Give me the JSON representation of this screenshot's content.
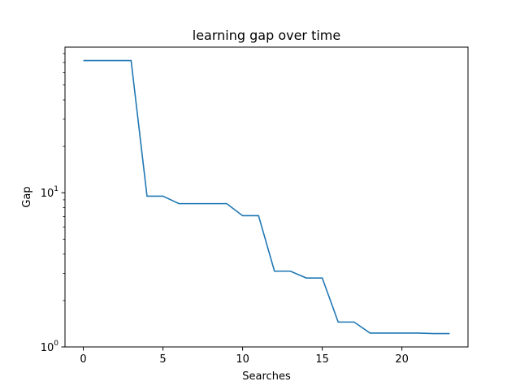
{
  "chart_data": {
    "type": "line",
    "title": "learning gap over time",
    "xlabel": "Searches",
    "ylabel": "Gap",
    "yscale": "log",
    "xlim": [
      -1.15,
      24.15
    ],
    "ylim": [
      1,
      88
    ],
    "grid": false,
    "x_ticks": [
      0,
      5,
      10,
      15,
      20
    ],
    "y_major_ticks": [
      {
        "value": 1,
        "base": "10",
        "exp": "0"
      },
      {
        "value": 10,
        "base": "10",
        "exp": "1"
      }
    ],
    "colors": {
      "series": "#1f77b4"
    },
    "series": [
      {
        "x": [
          0,
          1,
          2,
          3,
          4,
          5,
          6,
          7,
          8,
          9,
          10,
          11,
          12,
          13,
          14,
          15,
          16,
          17,
          18,
          19,
          20,
          21,
          22,
          23
        ],
        "values": [
          72,
          72,
          72,
          72,
          9.5,
          9.5,
          8.5,
          8.5,
          8.5,
          8.5,
          7.1,
          7.1,
          3.1,
          3.1,
          2.8,
          2.8,
          1.45,
          1.45,
          1.23,
          1.23,
          1.23,
          1.23,
          1.22,
          1.22
        ]
      }
    ]
  }
}
